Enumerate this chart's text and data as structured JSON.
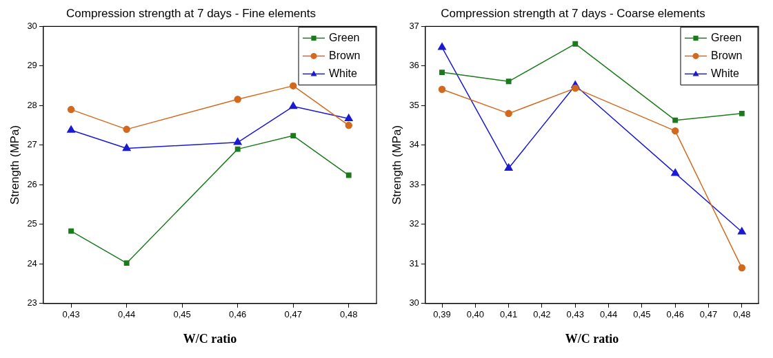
{
  "chart_data": [
    {
      "type": "line",
      "title": "Compression strength at 7 days - Fine elements",
      "xlabel": "W/C ratio",
      "ylabel": "Strength (MPa)",
      "x": [
        0.43,
        0.44,
        0.46,
        0.47,
        0.48
      ],
      "xlim": [
        0.425,
        0.485
      ],
      "xticks": [
        {
          "value": 0.43,
          "label": "0,43"
        },
        {
          "value": 0.44,
          "label": "0,44"
        },
        {
          "value": 0.45,
          "label": "0,45"
        },
        {
          "value": 0.46,
          "label": "0,46"
        },
        {
          "value": 0.47,
          "label": "0,47"
        },
        {
          "value": 0.48,
          "label": "0,48"
        }
      ],
      "ylim": [
        23,
        30
      ],
      "yticks": [
        23,
        24,
        25,
        26,
        27,
        28,
        29,
        30
      ],
      "legend": "top right",
      "series": [
        {
          "name": "Green",
          "color": "#1b7a1b",
          "marker": "square",
          "values": [
            24.83,
            24.02,
            26.9,
            27.24,
            26.24
          ]
        },
        {
          "name": "Brown",
          "color": "#d2691e",
          "marker": "circle",
          "values": [
            27.9,
            27.4,
            28.16,
            28.5,
            27.5
          ]
        },
        {
          "name": "White",
          "color": "#1a1ad0",
          "marker": "triangle",
          "values": [
            27.38,
            26.92,
            27.07,
            27.98,
            27.67
          ]
        }
      ]
    },
    {
      "type": "line",
      "title": "Compression strength at 7 days - Coarse elements",
      "xlabel": "W/C ratio",
      "ylabel": "Strength (MPa)",
      "x": [
        0.39,
        0.41,
        0.43,
        0.46,
        0.48
      ],
      "xlim": [
        0.385,
        0.485
      ],
      "xticks": [
        {
          "value": 0.39,
          "label": "0,39"
        },
        {
          "value": 0.4,
          "label": "0,40"
        },
        {
          "value": 0.41,
          "label": "0,41"
        },
        {
          "value": 0.42,
          "label": "0,42"
        },
        {
          "value": 0.43,
          "label": "0,43"
        },
        {
          "value": 0.44,
          "label": "0,44"
        },
        {
          "value": 0.45,
          "label": "0,45"
        },
        {
          "value": 0.46,
          "label": "0,46"
        },
        {
          "value": 0.47,
          "label": "0,47"
        },
        {
          "value": 0.48,
          "label": "0,48"
        }
      ],
      "ylim": [
        30,
        37
      ],
      "yticks": [
        30,
        31,
        32,
        33,
        34,
        35,
        36,
        37
      ],
      "legend": "top right",
      "series": [
        {
          "name": "Green",
          "color": "#1b7a1b",
          "marker": "square",
          "values": [
            35.84,
            35.61,
            36.56,
            34.63,
            34.8
          ]
        },
        {
          "name": "Brown",
          "color": "#d2691e",
          "marker": "circle",
          "values": [
            35.41,
            34.8,
            35.44,
            34.36,
            30.9
          ]
        },
        {
          "name": "White",
          "color": "#1a1ad0",
          "marker": "triangle",
          "values": [
            36.47,
            33.42,
            35.51,
            33.29,
            31.81
          ]
        }
      ]
    }
  ]
}
